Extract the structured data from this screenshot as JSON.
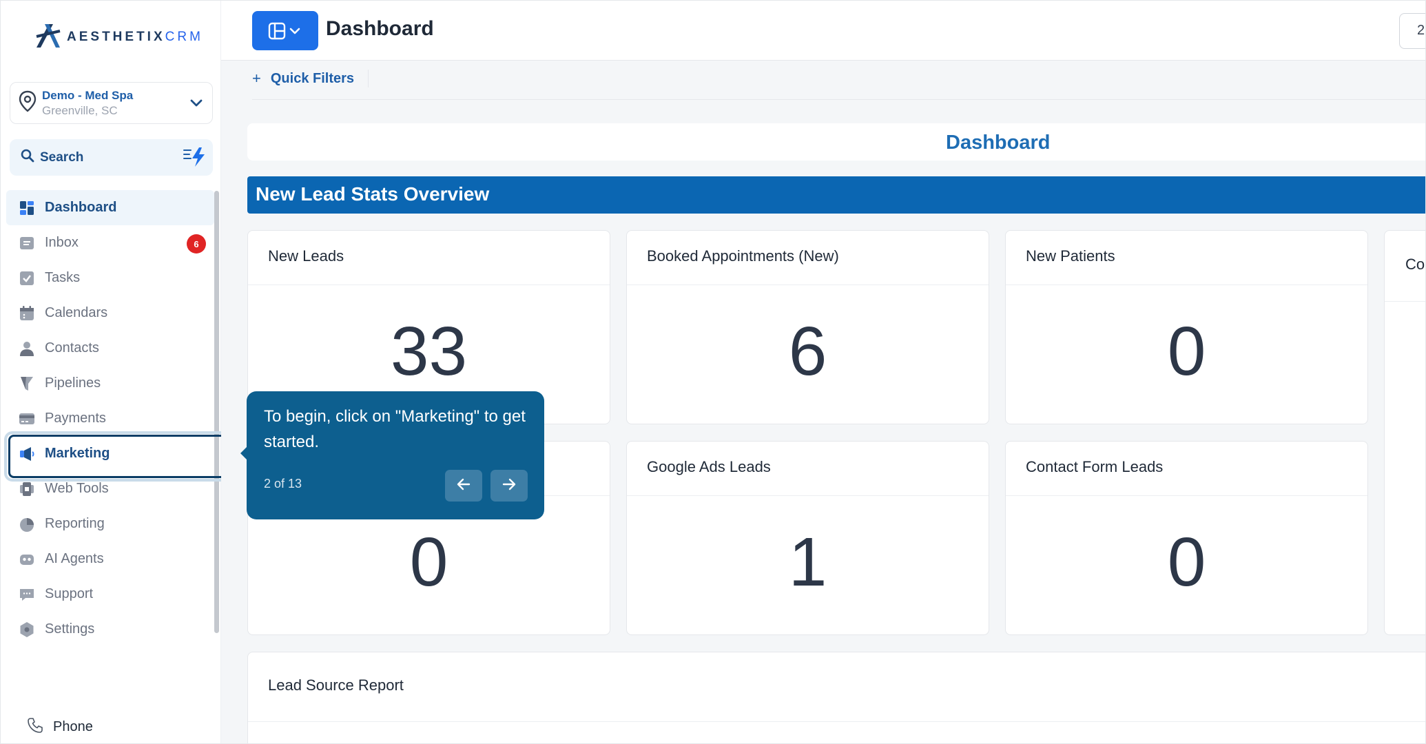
{
  "brand": {
    "logo_text_main": "AESTHETIX",
    "logo_text_suffix": "CRM"
  },
  "location": {
    "name": "Demo - Med Spa",
    "city": "Greenville, SC"
  },
  "search": {
    "label": "Search"
  },
  "nav": {
    "items": [
      {
        "label": "Dashboard",
        "icon": "dashboard-icon"
      },
      {
        "label": "Inbox",
        "icon": "inbox-icon",
        "badge": "6"
      },
      {
        "label": "Tasks",
        "icon": "tasks-icon"
      },
      {
        "label": "Calendars",
        "icon": "calendar-icon"
      },
      {
        "label": "Contacts",
        "icon": "contacts-icon"
      },
      {
        "label": "Pipelines",
        "icon": "pipelines-icon"
      },
      {
        "label": "Payments",
        "icon": "payments-icon"
      },
      {
        "label": "Marketing",
        "icon": "marketing-icon"
      },
      {
        "label": "Web Tools",
        "icon": "web-tools-icon"
      },
      {
        "label": "Reporting",
        "icon": "reporting-icon"
      },
      {
        "label": "AI Agents",
        "icon": "ai-agents-icon"
      },
      {
        "label": "Support",
        "icon": "support-icon"
      },
      {
        "label": "Settings",
        "icon": "settings-icon"
      }
    ],
    "active": "Dashboard",
    "highlighted": "Marketing"
  },
  "phone": {
    "label": "Phone"
  },
  "topbar": {
    "title": "Dashboard",
    "right_text": "2"
  },
  "filters": {
    "quick_filters_label": "Quick Filters",
    "plus": "+"
  },
  "dashboard": {
    "header_title": "Dashboard",
    "section_title": "New Lead Stats Overview"
  },
  "cards": [
    {
      "title": "New Leads",
      "value": "33"
    },
    {
      "title": "Booked Appointments (New)",
      "value": "6"
    },
    {
      "title": "New Patients",
      "value": "0"
    },
    {
      "title": "Co",
      "value": ""
    },
    {
      "title": "",
      "value": "0"
    },
    {
      "title": "Google Ads Leads",
      "value": "1"
    },
    {
      "title": "Contact Form Leads",
      "value": "0"
    }
  ],
  "lead_source": {
    "title": "Lead Source Report"
  },
  "tooltip": {
    "text": "To begin, click on \"Marketing\" to get started.",
    "step": "2 of 13"
  },
  "colors": {
    "accent": "#1d6fe8",
    "section_bar": "#0b66b2",
    "tooltip_bg": "#0d5f8f",
    "badge": "#e02424",
    "brand_text": "#1e4f86"
  }
}
